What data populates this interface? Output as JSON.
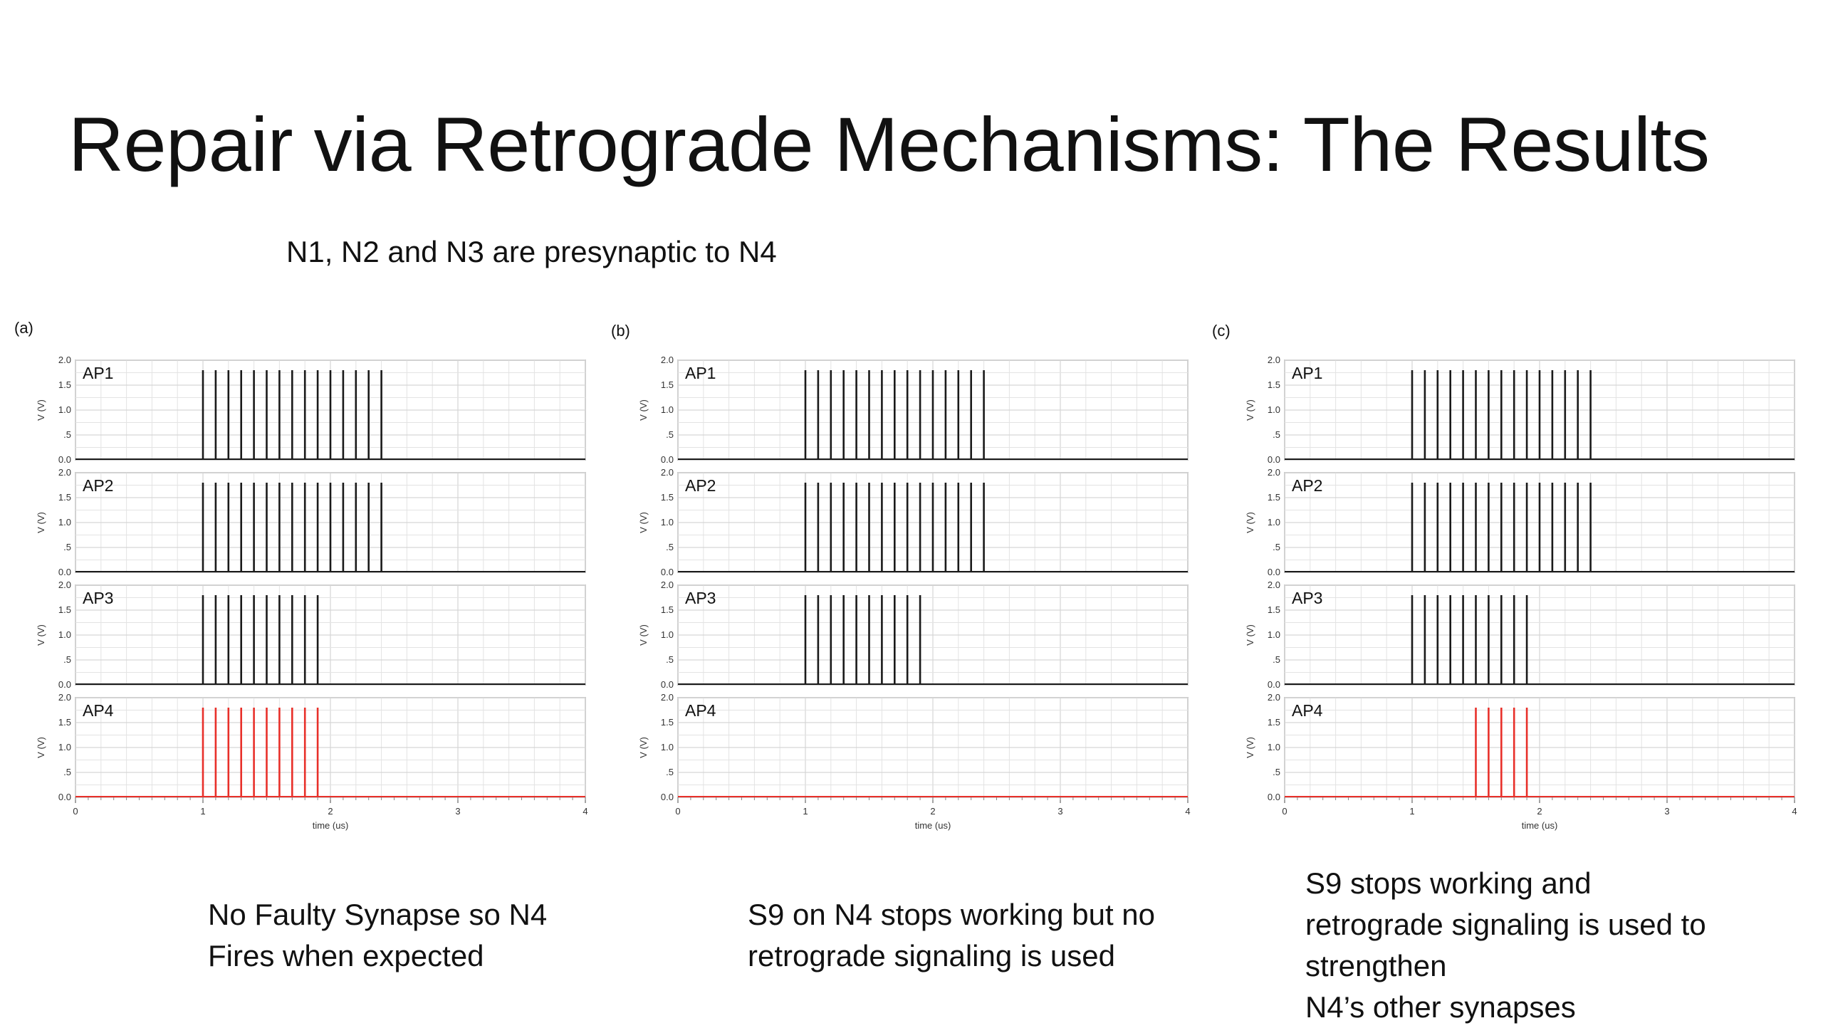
{
  "title": "Repair via Retrograde Mechanisms: The Results",
  "subtitle": "N1, N2 and N3 are presynaptic to N4",
  "captions": {
    "a": [
      "No Faulty Synapse so N4",
      "Fires when expected"
    ],
    "b": [
      "S9 on N4 stops working but no",
      "retrograde signaling is used"
    ],
    "c": [
      "S9 stops working and",
      "retrograde signaling is used to",
      "strengthen",
      "N4’s other synapses"
    ]
  },
  "colors": {
    "presynaptic": "#1a1a1a",
    "postsynaptic": "#e8302a",
    "grid": "#e3e3e3",
    "frame": "#9a9a9a"
  },
  "chart_data": [
    {
      "type": "line",
      "panel": "(a)",
      "xlabel": "time (us)",
      "ylabel": "V (V)",
      "xlim": [
        0,
        4
      ],
      "ylim": [
        0,
        2.0
      ],
      "xticks": [
        "0",
        "1",
        "2",
        "3",
        "4"
      ],
      "yticks": [
        "0.0",
        ".5",
        "1.0",
        "1.5",
        "2.0"
      ],
      "series": [
        {
          "name": "AP1",
          "color": "#1a1a1a",
          "spike_height": 1.8,
          "spike_times": [
            1.0,
            1.1,
            1.2,
            1.3,
            1.4,
            1.5,
            1.6,
            1.7,
            1.8,
            1.9,
            2.0,
            2.1,
            2.2,
            2.3,
            2.4
          ]
        },
        {
          "name": "AP2",
          "color": "#1a1a1a",
          "spike_height": 1.8,
          "spike_times": [
            1.0,
            1.1,
            1.2,
            1.3,
            1.4,
            1.5,
            1.6,
            1.7,
            1.8,
            1.9,
            2.0,
            2.1,
            2.2,
            2.3,
            2.4
          ]
        },
        {
          "name": "AP3",
          "color": "#1a1a1a",
          "spike_height": 1.8,
          "spike_times": [
            1.0,
            1.1,
            1.2,
            1.3,
            1.4,
            1.5,
            1.6,
            1.7,
            1.8,
            1.9
          ]
        },
        {
          "name": "AP4",
          "color": "#e8302a",
          "spike_height": 1.8,
          "spike_times": [
            1.0,
            1.1,
            1.2,
            1.3,
            1.4,
            1.5,
            1.6,
            1.7,
            1.8,
            1.9
          ]
        }
      ]
    },
    {
      "type": "line",
      "panel": "(b)",
      "xlabel": "time (us)",
      "ylabel": "V (V)",
      "xlim": [
        0,
        4
      ],
      "ylim": [
        0,
        2.0
      ],
      "xticks": [
        "0",
        "1",
        "2",
        "3",
        "4"
      ],
      "yticks": [
        "0.0",
        ".5",
        "1.0",
        "1.5",
        "2.0"
      ],
      "series": [
        {
          "name": "AP1",
          "color": "#1a1a1a",
          "spike_height": 1.8,
          "spike_times": [
            1.0,
            1.1,
            1.2,
            1.3,
            1.4,
            1.5,
            1.6,
            1.7,
            1.8,
            1.9,
            2.0,
            2.1,
            2.2,
            2.3,
            2.4
          ]
        },
        {
          "name": "AP2",
          "color": "#1a1a1a",
          "spike_height": 1.8,
          "spike_times": [
            1.0,
            1.1,
            1.2,
            1.3,
            1.4,
            1.5,
            1.6,
            1.7,
            1.8,
            1.9,
            2.0,
            2.1,
            2.2,
            2.3,
            2.4
          ]
        },
        {
          "name": "AP3",
          "color": "#1a1a1a",
          "spike_height": 1.8,
          "spike_times": [
            1.0,
            1.1,
            1.2,
            1.3,
            1.4,
            1.5,
            1.6,
            1.7,
            1.8,
            1.9
          ]
        },
        {
          "name": "AP4",
          "color": "#e8302a",
          "spike_height": 1.8,
          "spike_times": []
        }
      ]
    },
    {
      "type": "line",
      "panel": "(c)",
      "xlabel": "time (us)",
      "ylabel": "V (V)",
      "xlim": [
        0,
        4
      ],
      "ylim": [
        0,
        2.0
      ],
      "xticks": [
        "0",
        "1",
        "2",
        "3",
        "4"
      ],
      "yticks": [
        "0.0",
        ".5",
        "1.0",
        "1.5",
        "2.0"
      ],
      "series": [
        {
          "name": "AP1",
          "color": "#1a1a1a",
          "spike_height": 1.8,
          "spike_times": [
            1.0,
            1.1,
            1.2,
            1.3,
            1.4,
            1.5,
            1.6,
            1.7,
            1.8,
            1.9,
            2.0,
            2.1,
            2.2,
            2.3,
            2.4
          ]
        },
        {
          "name": "AP2",
          "color": "#1a1a1a",
          "spike_height": 1.8,
          "spike_times": [
            1.0,
            1.1,
            1.2,
            1.3,
            1.4,
            1.5,
            1.6,
            1.7,
            1.8,
            1.9,
            2.0,
            2.1,
            2.2,
            2.3,
            2.4
          ]
        },
        {
          "name": "AP3",
          "color": "#1a1a1a",
          "spike_height": 1.8,
          "spike_times": [
            1.0,
            1.1,
            1.2,
            1.3,
            1.4,
            1.5,
            1.6,
            1.7,
            1.8,
            1.9
          ]
        },
        {
          "name": "AP4",
          "color": "#e8302a",
          "spike_height": 1.8,
          "spike_times": [
            1.5,
            1.6,
            1.7,
            1.8,
            1.9
          ]
        }
      ]
    }
  ]
}
